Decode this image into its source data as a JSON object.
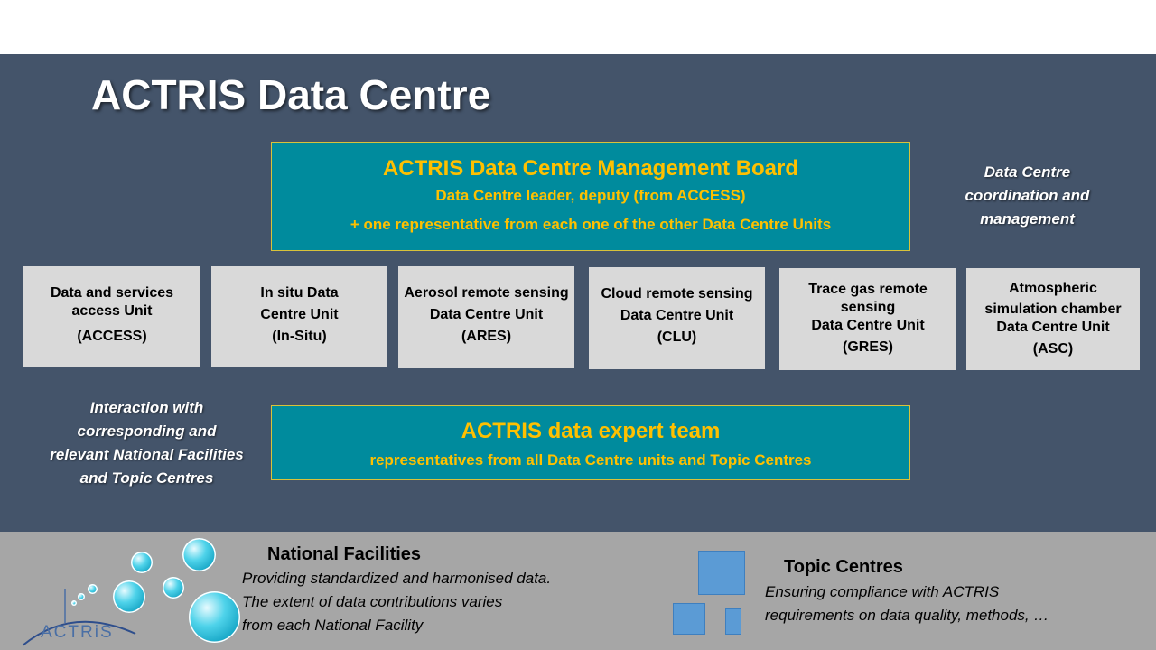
{
  "title": "ACTRIS Data Centre",
  "management_board": {
    "title": "ACTRIS Data Centre Management Board",
    "line1": "Data Centre leader, deputy (from ACCESS)",
    "line2": "+ one representative from each one of the other Data Centre Units"
  },
  "coordination_label": [
    "Data Centre",
    "coordination and",
    "management"
  ],
  "units": [
    {
      "name_lines": [
        "Data and services",
        "access Unit"
      ],
      "code": "(ACCESS)"
    },
    {
      "name_lines": [
        "In situ Data",
        "Centre Unit"
      ],
      "code": "(In-Situ)"
    },
    {
      "name_lines": [
        "Aerosol remote sensing",
        "Data Centre Unit"
      ],
      "code": "(ARES)"
    },
    {
      "name_lines": [
        "Cloud remote sensing",
        "Data Centre Unit"
      ],
      "code": "(CLU)"
    },
    {
      "name_lines": [
        "Trace gas remote",
        "sensing",
        "Data Centre Unit"
      ],
      "code": "(GRES)"
    },
    {
      "name_lines": [
        "Atmospheric",
        "simulation chamber",
        "Data Centre Unit"
      ],
      "code": "(ASC)"
    }
  ],
  "interaction_label": [
    "Interaction with",
    "corresponding and",
    "relevant National Facilities",
    "and Topic Centres"
  ],
  "expert_team": {
    "title": "ACTRIS data expert team",
    "subtitle": "representatives from all Data Centre units and Topic Centres"
  },
  "national_facilities": {
    "title": "National Facilities",
    "lines": [
      "Providing standardized and harmonised data.",
      "The extent of data contributions varies",
      "from each National Facility"
    ]
  },
  "topic_centres": {
    "title": "Topic Centres",
    "lines": [
      "Ensuring compliance with ACTRIS",
      "requirements on data quality, methods, …"
    ]
  },
  "logo_text": "ACTRiS",
  "colors": {
    "background": "#44546a",
    "footer": "#a6a6a6",
    "teal_box": "#008b9d",
    "highlight_text": "#ffc000",
    "unit_box": "#d9d9d9",
    "topic_square": "#5b9bd5"
  }
}
